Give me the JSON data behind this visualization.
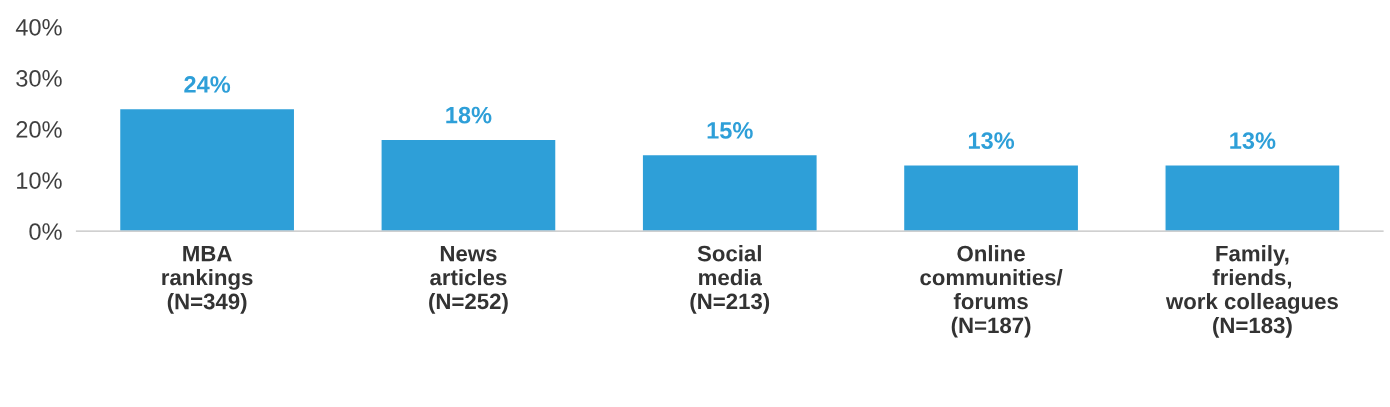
{
  "chart_data": {
    "type": "bar",
    "categories": [
      "MBA\nrankings\n(N=349)",
      "News\narticles\n(N=252)",
      "Social\nmedia\n(N=213)",
      "Online\ncommunities/\nforums\n(N=187)",
      "Family,\nfriends,\nwork colleagues\n(N=183)"
    ],
    "values": [
      24,
      18,
      15,
      13,
      13
    ],
    "value_labels": [
      "24%",
      "18%",
      "15%",
      "13%",
      "13%"
    ],
    "color": "#2e9fd8",
    "ylim": [
      0,
      40
    ],
    "yticks": [
      {
        "value": 0,
        "label": "0%"
      },
      {
        "value": 10,
        "label": "10%"
      },
      {
        "value": 20,
        "label": "20%"
      },
      {
        "value": 30,
        "label": "30%"
      },
      {
        "value": 40,
        "label": "40%"
      }
    ],
    "grid": false,
    "legend": false
  }
}
